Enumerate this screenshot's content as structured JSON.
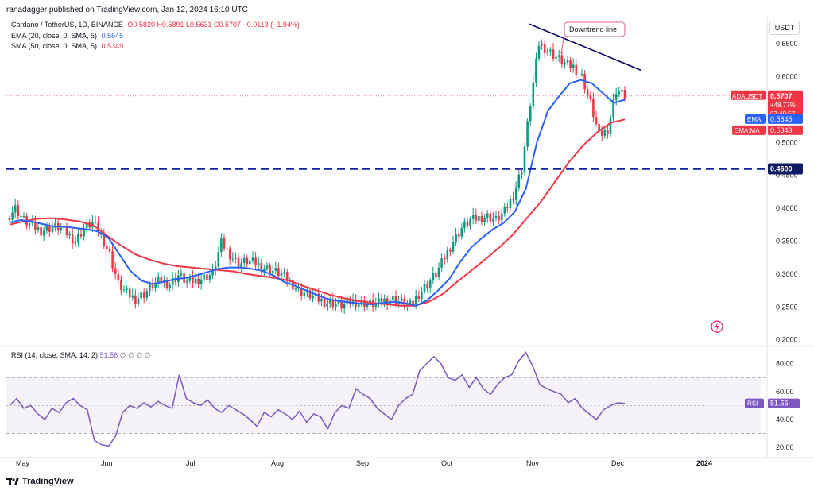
{
  "header": {
    "published": "ranadagger published on TradingView.com, Jan 12, 2024 16:10 UTC"
  },
  "legend": {
    "symbol": "Cardano / TetherUS, 1D, BINANCE",
    "ohlc": "O0.5820 H0.5891 L0.5631 C0.5707 −0.0113 (−1.94%)",
    "ema_label": "EMA (20, close, 0, SMA, 5)",
    "ema_value": "0.5645",
    "sma_label": "SMA (50, close, 0, SMA, 5)",
    "sma_value": "0.5349",
    "rsi_label": "RSI (14, close, SMA, 14, 2)",
    "rsi_value": "51.56",
    "rsi_extra": "∅ ∅ ∅ ∅"
  },
  "pair_badge": "USDT",
  "footer": {
    "brand": "TradingView"
  },
  "colors": {
    "ema": "#2962ff",
    "sma": "#f23645",
    "up": "#089981",
    "down": "#f23645",
    "rsi": "#7e57c2",
    "support": "#0d21a1"
  },
  "chart_data": {
    "type": "candlestick",
    "title": "Cardano / TetherUS, 1D, BINANCE",
    "price_axis": {
      "ticks": [
        "0.6500",
        "0.6000",
        "0.5500",
        "0.5000",
        "0.4500",
        "0.4000",
        "0.3500",
        "0.3000",
        "0.2500",
        "0.2000"
      ],
      "range": [
        0.19,
        0.69
      ]
    },
    "time_axis": {
      "ticks": [
        "May",
        "Jun",
        "Jul",
        "Aug",
        "Sep",
        "Oct",
        "Nov",
        "Dec",
        "2024"
      ]
    },
    "price_path": [
      0.385,
      0.4,
      0.382,
      0.372,
      0.366,
      0.37,
      0.372,
      0.362,
      0.35,
      0.37,
      0.378,
      0.36,
      0.33,
      0.285,
      0.27,
      0.262,
      0.27,
      0.283,
      0.29,
      0.285,
      0.298,
      0.288,
      0.29,
      0.295,
      0.3,
      0.348,
      0.33,
      0.315,
      0.32,
      0.316,
      0.31,
      0.305,
      0.3,
      0.288,
      0.275,
      0.27,
      0.263,
      0.258,
      0.256,
      0.252,
      0.258,
      0.256,
      0.255,
      0.254,
      0.26,
      0.262,
      0.257,
      0.252,
      0.27,
      0.285,
      0.3,
      0.325,
      0.35,
      0.37,
      0.382,
      0.385,
      0.388,
      0.382,
      0.395,
      0.42,
      0.46,
      0.56,
      0.65,
      0.64,
      0.63,
      0.62,
      0.615,
      0.6,
      0.56,
      0.51,
      0.52,
      0.58,
      0.571
    ],
    "ema_path": [
      0.378,
      0.382,
      0.38,
      0.376,
      0.372,
      0.372,
      0.37,
      0.368,
      0.365,
      0.355,
      0.33,
      0.305,
      0.29,
      0.285,
      0.288,
      0.292,
      0.294,
      0.298,
      0.303,
      0.308,
      0.31,
      0.31,
      0.308,
      0.305,
      0.298,
      0.288,
      0.282,
      0.275,
      0.268,
      0.262,
      0.259,
      0.257,
      0.255,
      0.254,
      0.256,
      0.258,
      0.256,
      0.252,
      0.26,
      0.275,
      0.292,
      0.318,
      0.34,
      0.355,
      0.368,
      0.378,
      0.395,
      0.43,
      0.5,
      0.548,
      0.57,
      0.59,
      0.595,
      0.59,
      0.575,
      0.56,
      0.565
    ],
    "sma_path": [
      0.375,
      0.38,
      0.384,
      0.385,
      0.383,
      0.38,
      0.374,
      0.358,
      0.343,
      0.33,
      0.322,
      0.316,
      0.312,
      0.31,
      0.308,
      0.306,
      0.304,
      0.3,
      0.297,
      0.294,
      0.29,
      0.282,
      0.275,
      0.268,
      0.263,
      0.259,
      0.256,
      0.254,
      0.252,
      0.252,
      0.258,
      0.27,
      0.288,
      0.305,
      0.322,
      0.34,
      0.36,
      0.385,
      0.41,
      0.44,
      0.47,
      0.495,
      0.515,
      0.53,
      0.535
    ],
    "support_level": 0.46,
    "support_label": "0.4600",
    "downtrend_line": {
      "from": [
        0.68
      ],
      "to": [
        0.61
      ],
      "label": "Downtrend line"
    },
    "last_price": {
      "label": "ADAUSDT",
      "value": "0.5707",
      "change": "+48.77%",
      "countdown": "07:49:57"
    },
    "ema_tag": {
      "label": "EMA",
      "value": "0.5645"
    },
    "sma_tag": {
      "label": "SMA:MA",
      "value": "0.5349"
    },
    "rsi": {
      "ticks": [
        "80.00",
        "60.00",
        "40.00",
        "20.00"
      ],
      "range": [
        15,
        90
      ],
      "band": [
        30,
        70
      ],
      "series": [
        50,
        55,
        48,
        50,
        44,
        40,
        48,
        45,
        52,
        55,
        50,
        47,
        25,
        22,
        21,
        28,
        45,
        50,
        48,
        52,
        49,
        53,
        50,
        48,
        72,
        55,
        52,
        50,
        54,
        48,
        45,
        50,
        47,
        44,
        40,
        35,
        45,
        42,
        47,
        44,
        40,
        46,
        38,
        44,
        42,
        33,
        45,
        50,
        48,
        62,
        58,
        55,
        48,
        44,
        40,
        50,
        55,
        58,
        75,
        80,
        85,
        80,
        70,
        68,
        72,
        63,
        70,
        62,
        58,
        65,
        70,
        72,
        82,
        88,
        78,
        65,
        62,
        60,
        58,
        52,
        55,
        48,
        44,
        40,
        47,
        50,
        52,
        51.56
      ],
      "tag": {
        "label": "RSI",
        "value": "51.56"
      }
    }
  }
}
